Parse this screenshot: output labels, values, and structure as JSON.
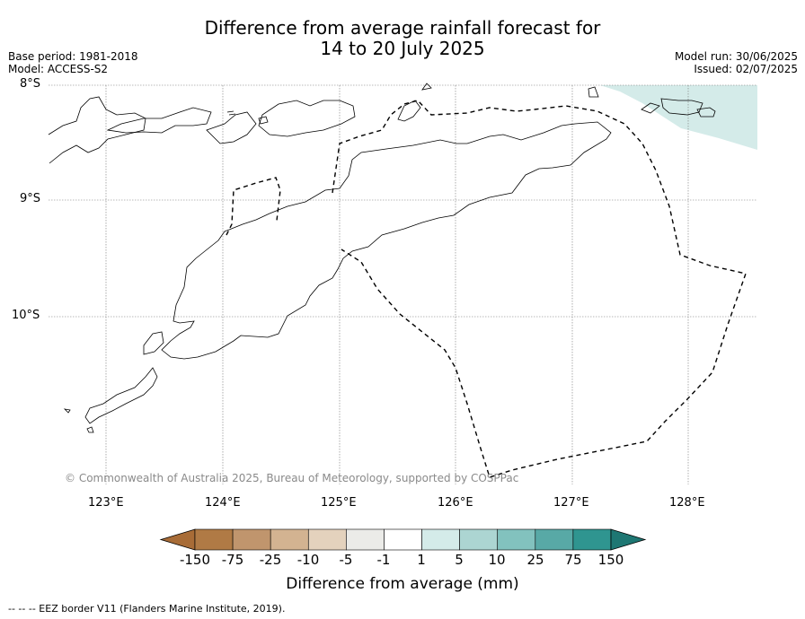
{
  "title": {
    "line1": "Difference from average rainfall forecast for",
    "line2": "14 to 20 July 2025"
  },
  "meta": {
    "base_period": "Base period: 1981-2018",
    "model": "Model: ACCESS-S2",
    "model_run": "Model run: 30/06/2025",
    "issued": "Issued: 02/07/2025"
  },
  "map": {
    "lat_labels": [
      "8°S",
      "9°S",
      "10°S"
    ],
    "lon_labels": [
      "123°E",
      "124°E",
      "125°E",
      "126°E",
      "127°E",
      "128°E"
    ],
    "copyright": "© Commonwealth of Australia 2025, Bureau of Meteorology, supported by COSPPac",
    "highlight_region": {
      "category": "1 to 5",
      "color": "#d4ebe9"
    }
  },
  "colorbar": {
    "label": "Difference from average (mm)",
    "ticks": [
      "-150",
      "-75",
      "-25",
      "-10",
      "-5",
      "-1",
      "1",
      "5",
      "10",
      "25",
      "75",
      "150"
    ],
    "colors": [
      "#a86c37",
      "#b07a45",
      "#c0956d",
      "#d3b391",
      "#e4d2bd",
      "#ebebe8",
      "#ffffff",
      "#d4ebe9",
      "#acd5d2",
      "#82c2be",
      "#58a9a6",
      "#2f9590",
      "#1e7773"
    ]
  },
  "footer": {
    "eez_note": "--  --  -- EEZ border V11 (Flanders Marine Institute, 2019)."
  }
}
